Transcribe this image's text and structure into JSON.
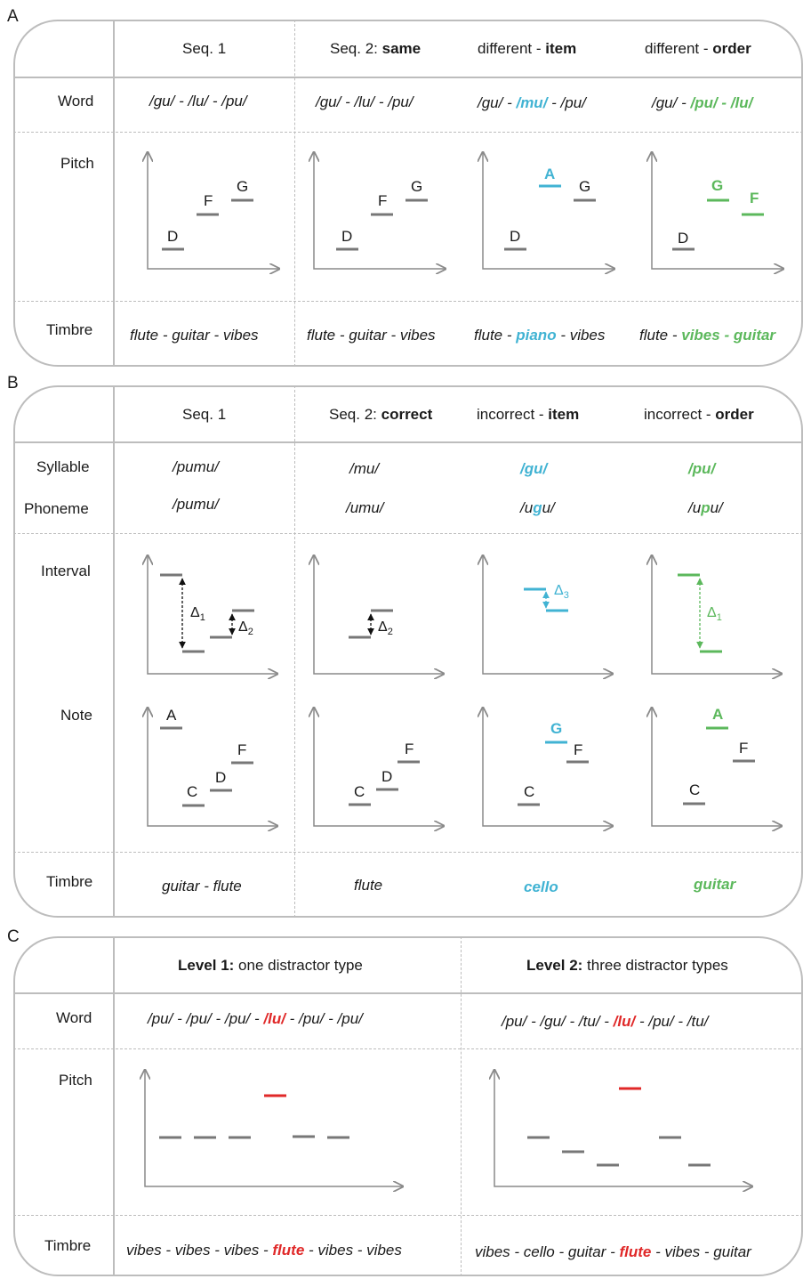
{
  "colors": {
    "blue": "#41b3d3",
    "green": "#5cb85c",
    "red": "#e02828",
    "gray": "#777777",
    "border": "#bdbdbd"
  },
  "panelA": {
    "letter": "A",
    "headers": [
      "Seq. 1",
      "Seq. 2: ",
      "same",
      "different - ",
      "item",
      "different - ",
      "order"
    ],
    "row_labels": {
      "word": "Word",
      "pitch": "Pitch",
      "timbre": "Timbre"
    },
    "words": {
      "c1": "/gu/ - /lu/ - /pu/",
      "c2": "/gu/ - /lu/ - /pu/",
      "c3a": "/gu/ - ",
      "c3b": "/mu/",
      "c3c": " - /pu/",
      "c4a": "/gu/ - ",
      "c4b": "/pu/ - /lu/"
    },
    "notes": {
      "D": "D",
      "F": "F",
      "G": "G",
      "A": "A"
    },
    "timbres": {
      "c1": "flute - guitar - vibes",
      "c2": "flute - guitar - vibes",
      "c3a": "flute - ",
      "c3b": "piano",
      "c3c": " - vibes",
      "c4a": "flute - ",
      "c4b": "vibes - guitar"
    }
  },
  "panelB": {
    "letter": "B",
    "headers": [
      "Seq. 1",
      "Seq. 2: ",
      "correct",
      "incorrect - ",
      "item",
      "incorrect - ",
      "order"
    ],
    "row_labels": {
      "syllable": "Syllable",
      "phoneme": "Phoneme",
      "interval": "Interval",
      "note": "Note",
      "timbre": "Timbre"
    },
    "syllables": [
      "/pumu/",
      "/mu/",
      "/gu/",
      "/pu/"
    ],
    "phonemes": {
      "c1": "/pumu/",
      "c2": "/umu/",
      "c3a": "/u",
      "c3b": "g",
      "c3c": "u/",
      "c4a": "/u",
      "c4b": "p",
      "c4c": "u/"
    },
    "deltas": {
      "d1": "Δ",
      "s1": "1",
      "s2": "2",
      "s3": "3"
    },
    "notes": {
      "A": "A",
      "C": "C",
      "D": "D",
      "F": "F",
      "G": "G"
    },
    "timbres": [
      "guitar - flute",
      "flute",
      "cello",
      "guitar"
    ]
  },
  "panelC": {
    "letter": "C",
    "headers": {
      "l1b": "Level 1:",
      "l1": " one distractor type",
      "l2b": "Level 2:",
      "l2": " three distractor types"
    },
    "row_labels": {
      "word": "Word",
      "pitch": "Pitch",
      "timbre": "Timbre"
    },
    "words": {
      "l1a": "/pu/ - /pu/ - /pu/ - ",
      "l1b": "/lu/",
      "l1c": " - /pu/ - /pu/",
      "l2a": "/pu/ - /gu/ - /tu/ - ",
      "l2b": "/lu/",
      "l2c": " - /pu/ - /tu/"
    },
    "timbres": {
      "l1a": "vibes - vibes - vibes - ",
      "l1b": "flute",
      "l1c": " - vibes - vibes",
      "l2a": "vibes - cello - guitar - ",
      "l2b": "flute",
      "l2c": " - vibes - guitar"
    }
  }
}
